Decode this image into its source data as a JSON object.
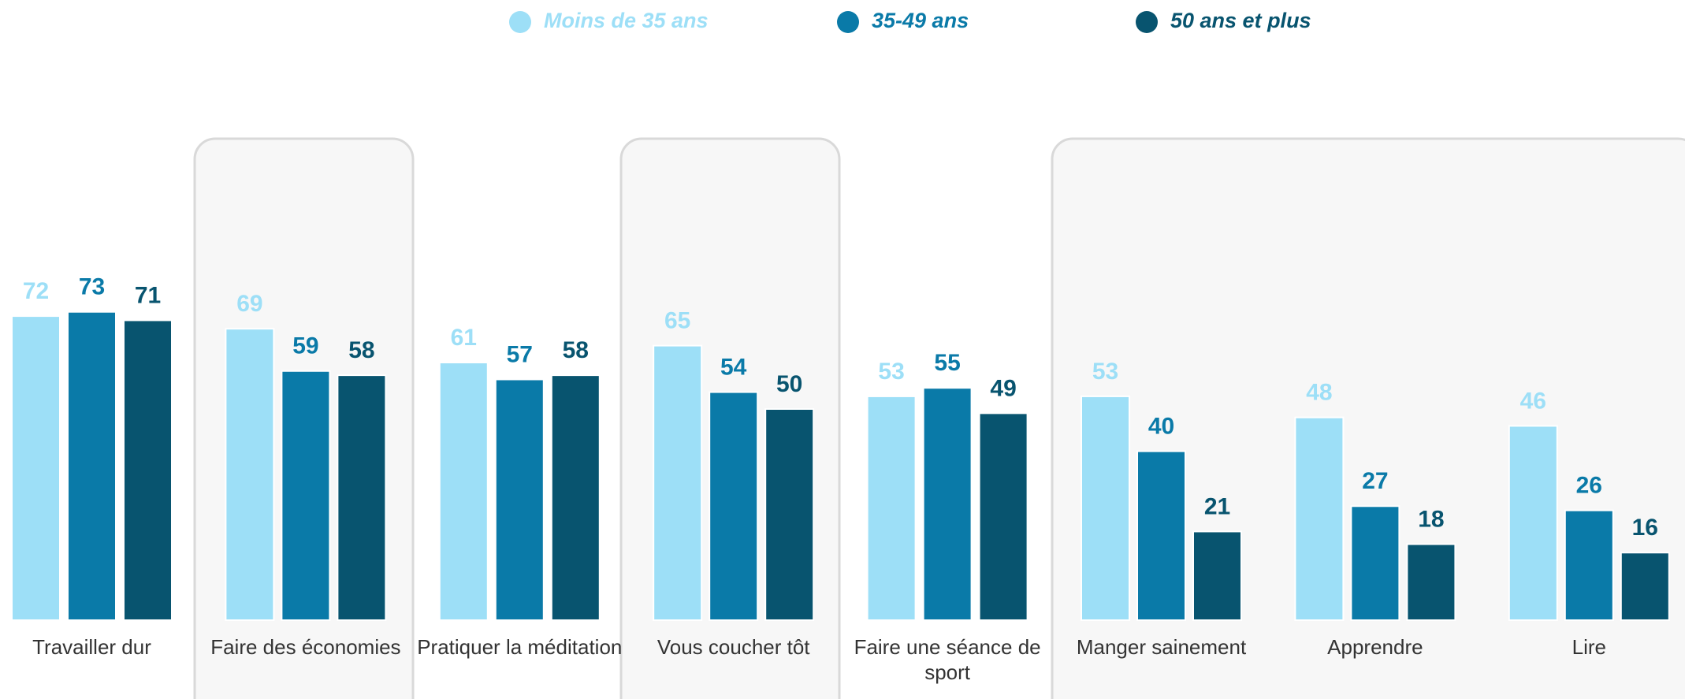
{
  "chart_data": {
    "type": "bar",
    "categories": [
      "Travailler dur",
      "Faire des économies",
      "Pratiquer la méditation",
      "Vous coucher tôt",
      "Faire une séance de sport",
      "Manger sainement",
      "Apprendre",
      "Lire"
    ],
    "series": [
      {
        "name": "Moins de 35 ans",
        "color": "#9ddff7",
        "values": [
          72,
          69,
          61,
          65,
          53,
          53,
          48,
          46
        ]
      },
      {
        "name": "35-49 ans",
        "color": "#0a7aa8",
        "values": [
          73,
          59,
          57,
          54,
          55,
          40,
          27,
          26
        ]
      },
      {
        "name": "50 ans et plus",
        "color": "#08546f",
        "values": [
          71,
          58,
          58,
          50,
          49,
          21,
          18,
          16
        ]
      }
    ],
    "legend": "top"
  }
}
